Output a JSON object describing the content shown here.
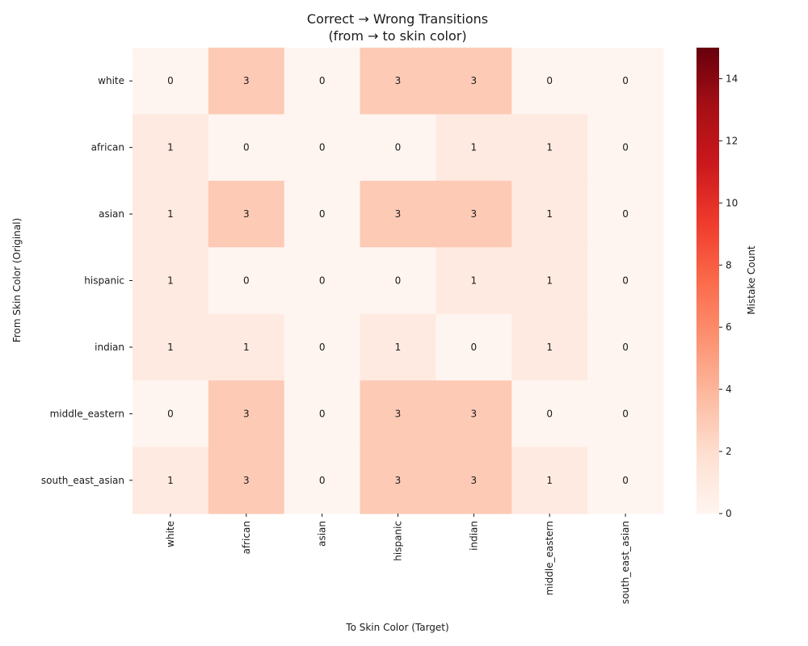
{
  "chart_data": {
    "type": "heatmap",
    "title": "Correct → Wrong Transitions",
    "subtitle": "(from → to skin color)",
    "xlabel": "To Skin Color (Target)",
    "ylabel": "From Skin Color (Original)",
    "x_categories": [
      "white",
      "african",
      "asian",
      "hispanic",
      "indian",
      "middle_eastern",
      "south_east_asian"
    ],
    "y_categories": [
      "white",
      "african",
      "asian",
      "hispanic",
      "indian",
      "middle_eastern",
      "south_east_asian"
    ],
    "values": [
      [
        0,
        3,
        0,
        3,
        3,
        0,
        0
      ],
      [
        1,
        0,
        0,
        0,
        1,
        1,
        0
      ],
      [
        1,
        3,
        0,
        3,
        3,
        1,
        0
      ],
      [
        1,
        0,
        0,
        0,
        1,
        1,
        0
      ],
      [
        1,
        1,
        0,
        1,
        0,
        1,
        0
      ],
      [
        0,
        3,
        0,
        3,
        3,
        0,
        0
      ],
      [
        1,
        3,
        0,
        3,
        3,
        1,
        0
      ]
    ],
    "colorbar": {
      "label": "Mistake Count",
      "range": [
        0,
        15
      ],
      "ticks": [
        0,
        2,
        4,
        6,
        8,
        10,
        12,
        14
      ],
      "colormap": "Reds"
    },
    "cell_annotations": true,
    "grid": false
  }
}
